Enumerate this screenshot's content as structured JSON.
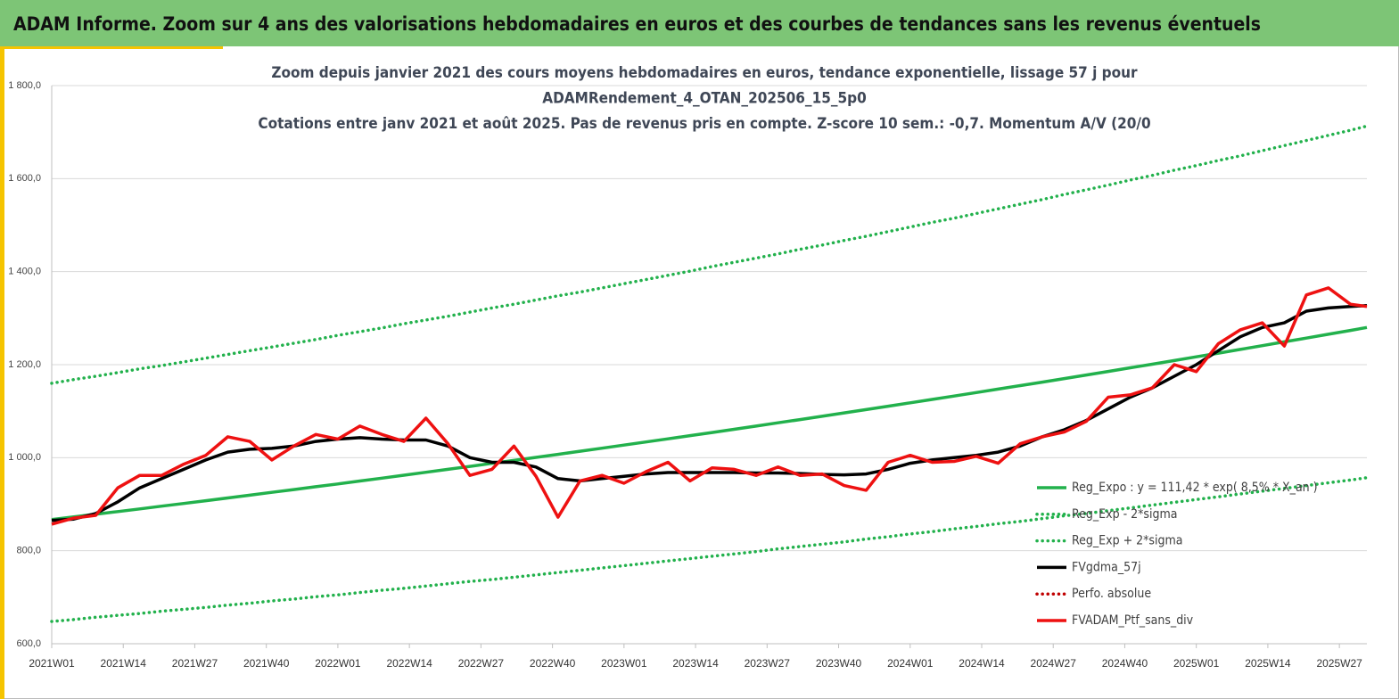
{
  "header": {
    "title": "ADAM Informe. Zoom sur 4 ans des valorisations hebdomadaires en euros et des courbes de tendances sans les revenus éventuels"
  },
  "chart_data": {
    "type": "line",
    "title": [
      "Zoom depuis janvier 2021 des cours moyens hebdomadaires  en euros, tendance exponentielle, lissage 57 j pour",
      "ADAMRendement_4_OTAN_202506_15_5p0",
      "Cotations  entre janv 2021 et août 2025. Pas de revenus pris en compte. Z-score 10 sem.: -0,7. Momentum A/V (20/0"
    ],
    "x": [
      0,
      4,
      8,
      12,
      16,
      20,
      24,
      28,
      32,
      36,
      40,
      44,
      48,
      52,
      56,
      60,
      64,
      68,
      72,
      76,
      80,
      84,
      88,
      92,
      96,
      100,
      104,
      108,
      112,
      116,
      120,
      124,
      128,
      132,
      136,
      140,
      144,
      148,
      152,
      156,
      160,
      164,
      168,
      172,
      176,
      180,
      184,
      188,
      192,
      196,
      200,
      204,
      208,
      212,
      216,
      220,
      224,
      228,
      232,
      236,
      239
    ],
    "xlim": [
      0,
      239
    ],
    "xticks": [
      {
        "value": 0,
        "label": "2021W01"
      },
      {
        "value": 13,
        "label": "2021W14"
      },
      {
        "value": 26,
        "label": "2021W27"
      },
      {
        "value": 39,
        "label": "2021W40"
      },
      {
        "value": 52,
        "label": "2022W01"
      },
      {
        "value": 65,
        "label": "2022W14"
      },
      {
        "value": 78,
        "label": "2022W27"
      },
      {
        "value": 91,
        "label": "2022W40"
      },
      {
        "value": 104,
        "label": "2023W01"
      },
      {
        "value": 117,
        "label": "2023W14"
      },
      {
        "value": 130,
        "label": "2023W27"
      },
      {
        "value": 143,
        "label": "2023W40"
      },
      {
        "value": 156,
        "label": "2024W01"
      },
      {
        "value": 169,
        "label": "2024W14"
      },
      {
        "value": 182,
        "label": "2024W27"
      },
      {
        "value": 195,
        "label": "2024W40"
      },
      {
        "value": 208,
        "label": "2025W01"
      },
      {
        "value": 221,
        "label": "2025W14"
      },
      {
        "value": 234,
        "label": "2025W27"
      }
    ],
    "ylim": [
      600,
      1800
    ],
    "yticks": [
      {
        "value": 600,
        "label": "600,0"
      },
      {
        "value": 800,
        "label": "800,0"
      },
      {
        "value": 1000,
        "label": "1 000,0"
      },
      {
        "value": 1200,
        "label": "1 200,0"
      },
      {
        "value": 1400,
        "label": "1 400,0"
      },
      {
        "value": 1600,
        "label": "1 600,0"
      },
      {
        "value": 1800,
        "label": "1 800,0"
      }
    ],
    "grid": true,
    "series": [
      {
        "name": "Reg_Expo : y = 111,42 * exp( 8,5% * X_an )",
        "color": "#22b14c",
        "style": "solid",
        "values": [
          867.0,
          872.7,
          878.4,
          884.1,
          889.9,
          895.7,
          901.6,
          907.5,
          913.4,
          919.4,
          925.4,
          931.4,
          937.5,
          943.6,
          949.8,
          956.0,
          962.3,
          968.6,
          974.9,
          981.3,
          987.7,
          994.2,
          1000.7,
          1007.2,
          1013.8,
          1020.4,
          1027.1,
          1033.8,
          1040.6,
          1047.4,
          1054.2,
          1061.1,
          1068.0,
          1075.0,
          1082.0,
          1089.1,
          1096.2,
          1103.4,
          1110.6,
          1117.9,
          1125.2,
          1132.6,
          1140.0,
          1147.4,
          1154.9,
          1162.5,
          1170.1,
          1177.8,
          1185.5,
          1193.2,
          1201.0,
          1208.9,
          1216.8,
          1224.8,
          1232.8,
          1240.9,
          1249.0,
          1257.2,
          1265.4,
          1273.7,
          1280
        ]
      },
      {
        "name": "Reg_Exp - 2*sigma",
        "color": "#22b14c",
        "style": "dotted",
        "values": [
          648,
          652,
          657,
          661,
          665,
          670,
          674,
          678,
          683,
          687,
          692,
          696,
          701,
          705,
          710,
          715,
          719,
          724,
          729,
          734,
          738,
          743,
          748,
          753,
          758,
          763,
          768,
          773,
          778,
          783,
          788,
          793,
          798,
          804,
          809,
          814,
          819,
          825,
          830,
          836,
          841,
          847,
          852,
          858,
          863,
          869,
          875,
          880,
          886,
          892,
          898,
          904,
          910,
          916,
          922,
          928,
          934,
          940,
          946,
          952,
          957
        ]
      },
      {
        "name": "Reg_Exp + 2*sigma",
        "color": "#22b14c",
        "style": "dotted",
        "values": [
          1160,
          1168,
          1175,
          1183,
          1191,
          1198,
          1206,
          1214,
          1222,
          1230,
          1238,
          1246,
          1254,
          1263,
          1271,
          1279,
          1288,
          1296,
          1304,
          1313,
          1322,
          1330,
          1339,
          1348,
          1356,
          1365,
          1374,
          1383,
          1392,
          1401,
          1411,
          1420,
          1429,
          1438,
          1448,
          1457,
          1467,
          1476,
          1486,
          1496,
          1506,
          1515,
          1525,
          1535,
          1545,
          1555,
          1566,
          1576,
          1586,
          1597,
          1607,
          1618,
          1628,
          1639,
          1649,
          1660,
          1671,
          1682,
          1693,
          1704,
          1713
        ]
      },
      {
        "name": "FVgdma_57j",
        "color": "#000000",
        "style": "solid",
        "values": [
          865,
          868,
          880,
          905,
          935,
          955,
          975,
          995,
          1012,
          1018,
          1020,
          1025,
          1035,
          1040,
          1043,
          1040,
          1038,
          1038,
          1025,
          1000,
          990,
          990,
          980,
          955,
          950,
          955,
          960,
          965,
          968,
          968,
          968,
          968,
          967,
          967,
          966,
          964,
          963,
          965,
          975,
          988,
          995,
          1000,
          1005,
          1012,
          1025,
          1045,
          1060,
          1080,
          1105,
          1130,
          1150,
          1175,
          1200,
          1230,
          1260,
          1280,
          1290,
          1315,
          1322,
          1325,
          1327
        ]
      },
      {
        "name": "Perfo. absolue",
        "color": "#c00000",
        "style": "dotted",
        "values": [
          null,
          null,
          null,
          null,
          null,
          null,
          null,
          null,
          null,
          null,
          null,
          null,
          null,
          null,
          null,
          null,
          null,
          null,
          null,
          null,
          null,
          null,
          null,
          null,
          null,
          null,
          null,
          null,
          null,
          null,
          null,
          null,
          null,
          null,
          null,
          null,
          null,
          null,
          null,
          null,
          null,
          null,
          null,
          null,
          null,
          null,
          null,
          null,
          null,
          null,
          null,
          null,
          null,
          null,
          null,
          null,
          null,
          null,
          null,
          null,
          null
        ]
      },
      {
        "name": "FVADAM_Ptf_sans_div",
        "color": "#ee1111",
        "style": "solid",
        "values": [
          857,
          870,
          876,
          935,
          962,
          962,
          986,
          1005,
          1045,
          1035,
          995,
          1025,
          1050,
          1040,
          1068,
          1050,
          1035,
          1085,
          1030,
          962,
          975,
          1025,
          960,
          872,
          950,
          962,
          945,
          970,
          990,
          950,
          978,
          975,
          962,
          980,
          962,
          965,
          940,
          930,
          990,
          1005,
          990,
          992,
          1003,
          988,
          1030,
          1045,
          1055,
          1078,
          1130,
          1135,
          1150,
          1200,
          1185,
          1245,
          1275,
          1290,
          1240,
          1350,
          1365,
          1330,
          1325
        ]
      }
    ]
  }
}
